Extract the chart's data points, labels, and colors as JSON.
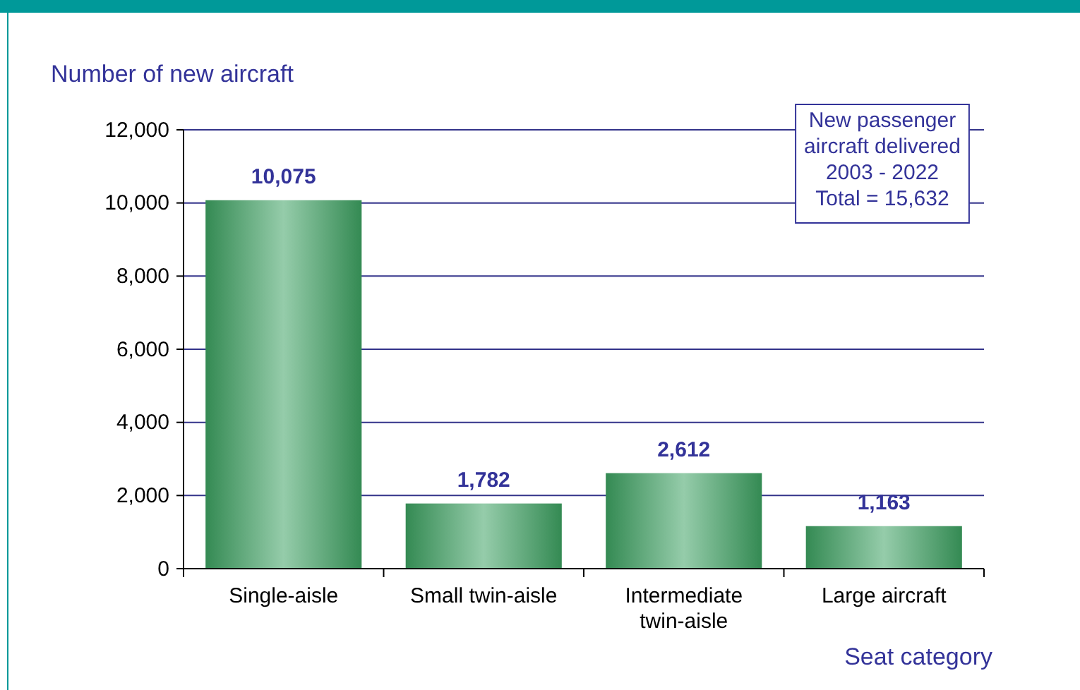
{
  "chart_data": {
    "type": "bar",
    "ylabel": "Number of new aircraft",
    "xlabel": "Seat category",
    "categories": [
      "Single-aisle",
      "Small twin-aisle",
      "Intermediate twin-aisle",
      "Large aircraft"
    ],
    "values": [
      10075,
      1782,
      2612,
      1163
    ],
    "color": "#3a9a5c",
    "value_labels": [
      "10,075",
      "1,782",
      "2,612",
      "1,163"
    ],
    "ylim": [
      0,
      12000
    ],
    "yticks": [
      {
        "value": 0,
        "label": "0"
      },
      {
        "value": 2000,
        "label": "2,000"
      },
      {
        "value": 4000,
        "label": "4,000"
      },
      {
        "value": 6000,
        "label": "6,000"
      },
      {
        "value": 8000,
        "label": "8,000"
      },
      {
        "value": 10000,
        "label": "10,000"
      },
      {
        "value": 12000,
        "label": "12,000"
      }
    ],
    "grid": "y",
    "annotations": [
      "New passenger\naircraft delivered\n2003 - 2022\nTotal  = 15,632"
    ]
  }
}
